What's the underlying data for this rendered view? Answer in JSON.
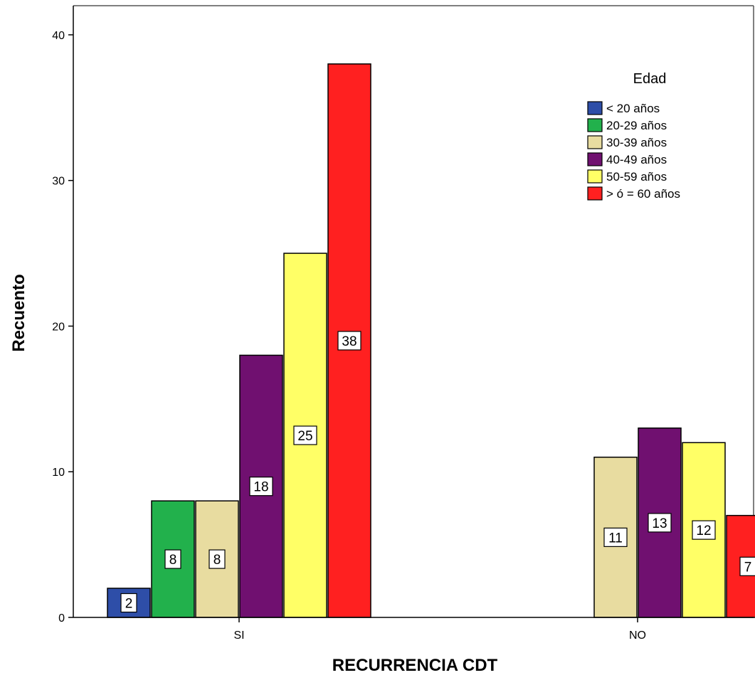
{
  "chart_data": {
    "type": "bar",
    "xlabel": "RECURRENCIA CDT",
    "ylabel": "Recuento",
    "categories": [
      "SI",
      "NO"
    ],
    "ylim": [
      0,
      42
    ],
    "yticks": [
      0,
      10,
      20,
      30,
      40
    ],
    "legend": {
      "title": "Edad",
      "position": "top-right"
    },
    "series": [
      {
        "name": "< 20 años",
        "color": "#2e4ea8",
        "values": [
          2,
          null
        ]
      },
      {
        "name": "20-29 años",
        "color": "#22b14c",
        "values": [
          8,
          null
        ]
      },
      {
        "name": "30-39 años",
        "color": "#e8dca0",
        "values": [
          8,
          11
        ]
      },
      {
        "name": "40-49 años",
        "color": "#701070",
        "values": [
          18,
          13
        ]
      },
      {
        "name": "50-59 años",
        "color": "#ffff66",
        "values": [
          25,
          12
        ]
      },
      {
        "name": "> ó =  60 años",
        "color": "#ff2020",
        "values": [
          38,
          7
        ]
      }
    ],
    "grid": false
  }
}
